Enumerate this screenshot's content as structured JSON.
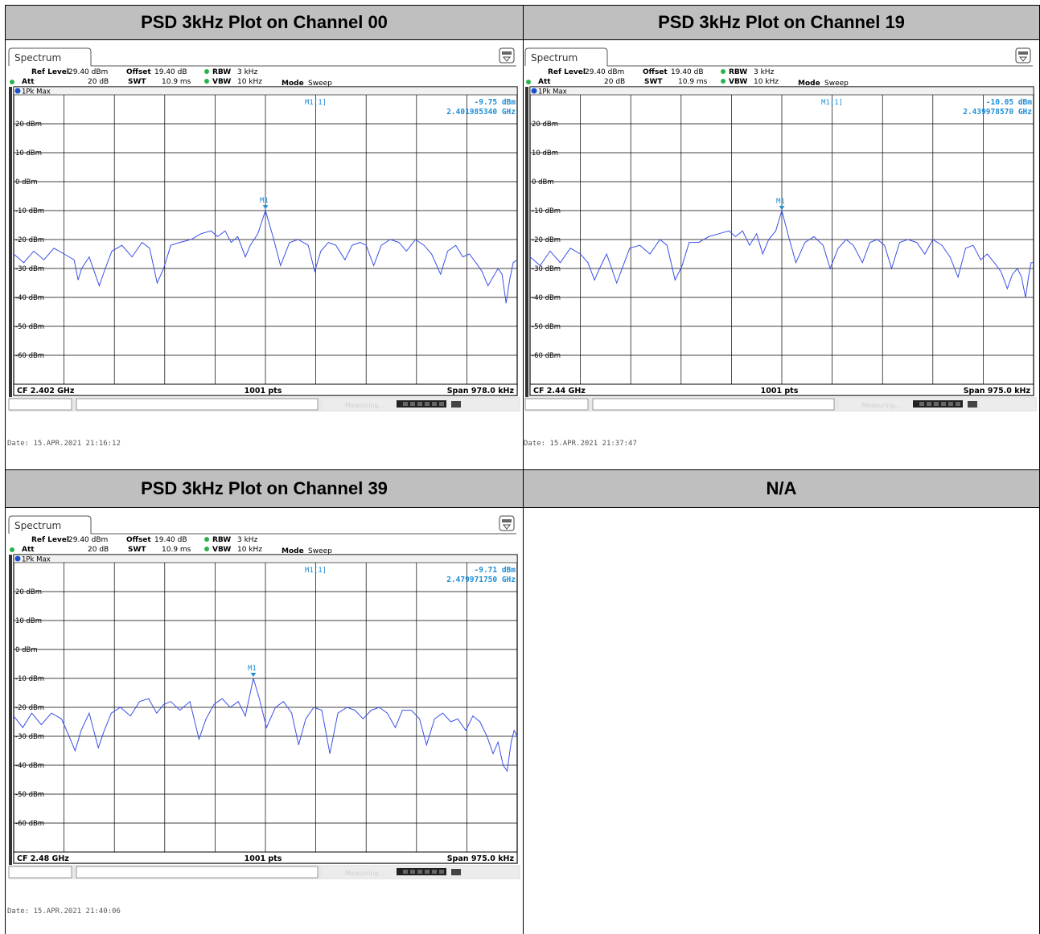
{
  "panels": [
    {
      "heading": "PSD 3kHz Plot on Channel 00",
      "tab": "Spectrum",
      "ref_level_label": "Ref Level",
      "ref_level": "29.40 dBm",
      "offset_label": "Offset",
      "offset": "19.40 dB",
      "rbw_label": "RBW",
      "rbw": "3 kHz",
      "att_label": "Att",
      "att": "20 dB",
      "swt_label": "SWT",
      "swt": "10.9 ms",
      "vbw_label": "VBW",
      "vbw": "10 kHz",
      "mode_label": "Mode",
      "mode": "Sweep",
      "trace_label": "1Pk Max",
      "marker_name": "M1[1]",
      "marker_level": "-9.75 dBm",
      "marker_freq": "2.401985340 GHz",
      "marker_tag": "M1",
      "cf": "CF 2.402 GHz",
      "pts": "1001 pts",
      "span": "Span 978.0 kHz",
      "status": "Measuring...",
      "date": "Date: 15.APR.2021  21:16:12"
    },
    {
      "heading": "PSD 3kHz Plot on Channel 19",
      "tab": "Spectrum",
      "ref_level_label": "Ref Level",
      "ref_level": "29.40 dBm",
      "offset_label": "Offset",
      "offset": "19.40 dB",
      "rbw_label": "RBW",
      "rbw": "3 kHz",
      "att_label": "Att",
      "att": "20 dB",
      "swt_label": "SWT",
      "swt": "10.9 ms",
      "vbw_label": "VBW",
      "vbw": "10 kHz",
      "mode_label": "Mode",
      "mode": "Sweep",
      "trace_label": "1Pk Max",
      "marker_name": "M1[1]",
      "marker_level": "-10.05 dBm",
      "marker_freq": "2.439978570 GHz",
      "marker_tag": "M1",
      "cf": "CF 2.44 GHz",
      "pts": "1001 pts",
      "span": "Span 975.0 kHz",
      "status": "Measuring...",
      "date": "Date: 15.APR.2021  21:37:47"
    },
    {
      "heading": "PSD 3kHz Plot on Channel 39",
      "tab": "Spectrum",
      "ref_level_label": "Ref Level",
      "ref_level": "29.40 dBm",
      "offset_label": "Offset",
      "offset": "19.40 dB",
      "rbw_label": "RBW",
      "rbw": "3 kHz",
      "att_label": "Att",
      "att": "20 dB",
      "swt_label": "SWT",
      "swt": "10.9 ms",
      "vbw_label": "VBW",
      "vbw": "10 kHz",
      "mode_label": "Mode",
      "mode": "Sweep",
      "trace_label": "1Pk Max",
      "marker_name": "M1[1]",
      "marker_level": "-9.71 dBm",
      "marker_freq": "2.479971750 GHz",
      "marker_tag": "M1",
      "cf": "CF 2.48 GHz",
      "pts": "1001 pts",
      "span": "Span 975.0 kHz",
      "status": "Measuring...",
      "date": "Date: 15.APR.2021  21:40:06"
    }
  ],
  "na_heading": "N/A",
  "colors": {
    "trace": "#3c50e6",
    "marker": "#1f8fd6",
    "header_bg": "#bfbfbf",
    "grid": "#000000"
  },
  "chart_data": [
    {
      "type": "line",
      "title": "PSD 3kHz Plot on Channel 00",
      "ylabel": "dBm",
      "ylim": [
        -70,
        30
      ],
      "xlim": [
        0,
        1000
      ],
      "yticks": [
        "20 dBm",
        "10 dBm",
        "0 dBm",
        "-10 dBm",
        "-20 dBm",
        "-30 dBm",
        "-40 dBm",
        "-50 dBm",
        "-60 dBm"
      ],
      "marker": {
        "x": 500,
        "y": -9.75
      },
      "series": [
        {
          "values": [
            [
              0,
              -25
            ],
            [
              20,
              -28
            ],
            [
              40,
              -24
            ],
            [
              60,
              -27
            ],
            [
              80,
              -23
            ],
            [
              100,
              -25
            ],
            [
              120,
              -27
            ],
            [
              128,
              -34
            ],
            [
              135,
              -30
            ],
            [
              150,
              -26
            ],
            [
              170,
              -36
            ],
            [
              182,
              -30
            ],
            [
              195,
              -24
            ],
            [
              215,
              -22
            ],
            [
              235,
              -26
            ],
            [
              255,
              -21
            ],
            [
              270,
              -23
            ],
            [
              285,
              -35
            ],
            [
              298,
              -30
            ],
            [
              312,
              -22
            ],
            [
              330,
              -21
            ],
            [
              352,
              -20
            ],
            [
              372,
              -18
            ],
            [
              392,
              -17
            ],
            [
              405,
              -19
            ],
            [
              420,
              -17
            ],
            [
              432,
              -21
            ],
            [
              445,
              -19
            ],
            [
              460,
              -26
            ],
            [
              470,
              -22
            ],
            [
              485,
              -18
            ],
            [
              500,
              -10
            ],
            [
              515,
              -19
            ],
            [
              530,
              -29
            ],
            [
              548,
              -21
            ],
            [
              565,
              -20
            ],
            [
              585,
              -22
            ],
            [
              598,
              -31
            ],
            [
              610,
              -24
            ],
            [
              625,
              -21
            ],
            [
              640,
              -22
            ],
            [
              658,
              -27
            ],
            [
              672,
              -22
            ],
            [
              688,
              -21
            ],
            [
              700,
              -22
            ],
            [
              715,
              -29
            ],
            [
              730,
              -22
            ],
            [
              748,
              -20
            ],
            [
              765,
              -21
            ],
            [
              780,
              -24
            ],
            [
              798,
              -20
            ],
            [
              815,
              -22
            ],
            [
              830,
              -25
            ],
            [
              848,
              -32
            ],
            [
              862,
              -24
            ],
            [
              878,
              -22
            ],
            [
              892,
              -26
            ],
            [
              905,
              -25
            ],
            [
              918,
              -28
            ],
            [
              930,
              -31
            ],
            [
              942,
              -36
            ],
            [
              952,
              -33
            ],
            [
              962,
              -30
            ],
            [
              970,
              -32
            ],
            [
              978,
              -42
            ],
            [
              985,
              -34
            ],
            [
              992,
              -28
            ],
            [
              1000,
              -27
            ]
          ]
        }
      ]
    },
    {
      "type": "line",
      "title": "PSD 3kHz Plot on Channel 19",
      "ylabel": "dBm",
      "ylim": [
        -70,
        30
      ],
      "xlim": [
        0,
        1000
      ],
      "yticks": [
        "20 dBm",
        "10 dBm",
        "0 dBm",
        "-10 dBm",
        "-20 dBm",
        "-30 dBm",
        "-40 dBm",
        "-50 dBm",
        "-60 dBm"
      ],
      "marker": {
        "x": 500,
        "y": -10.05
      },
      "series": [
        {
          "values": [
            [
              0,
              -26
            ],
            [
              20,
              -29
            ],
            [
              40,
              -24
            ],
            [
              60,
              -28
            ],
            [
              80,
              -23
            ],
            [
              100,
              -25
            ],
            [
              115,
              -28
            ],
            [
              128,
              -34
            ],
            [
              138,
              -30
            ],
            [
              152,
              -25
            ],
            [
              172,
              -35
            ],
            [
              185,
              -29
            ],
            [
              198,
              -23
            ],
            [
              218,
              -22
            ],
            [
              238,
              -25
            ],
            [
              258,
              -20
            ],
            [
              272,
              -22
            ],
            [
              288,
              -34
            ],
            [
              302,
              -29
            ],
            [
              316,
              -21
            ],
            [
              335,
              -21
            ],
            [
              355,
              -19
            ],
            [
              375,
              -18
            ],
            [
              395,
              -17
            ],
            [
              408,
              -19
            ],
            [
              422,
              -17
            ],
            [
              436,
              -22
            ],
            [
              450,
              -18
            ],
            [
              462,
              -25
            ],
            [
              474,
              -20
            ],
            [
              488,
              -17
            ],
            [
              500,
              -10
            ],
            [
              512,
              -18
            ],
            [
              528,
              -28
            ],
            [
              546,
              -21
            ],
            [
              564,
              -19
            ],
            [
              582,
              -22
            ],
            [
              596,
              -30
            ],
            [
              612,
              -23
            ],
            [
              628,
              -20
            ],
            [
              642,
              -22
            ],
            [
              660,
              -28
            ],
            [
              675,
              -21
            ],
            [
              690,
              -20
            ],
            [
              704,
              -22
            ],
            [
              718,
              -30
            ],
            [
              734,
              -21
            ],
            [
              750,
              -20
            ],
            [
              768,
              -21
            ],
            [
              784,
              -25
            ],
            [
              800,
              -20
            ],
            [
              818,
              -22
            ],
            [
              834,
              -26
            ],
            [
              850,
              -33
            ],
            [
              865,
              -23
            ],
            [
              880,
              -22
            ],
            [
              895,
              -27
            ],
            [
              908,
              -25
            ],
            [
              922,
              -28
            ],
            [
              935,
              -31
            ],
            [
              948,
              -37
            ],
            [
              958,
              -32
            ],
            [
              968,
              -30
            ],
            [
              976,
              -33
            ],
            [
              984,
              -40
            ],
            [
              990,
              -33
            ],
            [
              995,
              -28
            ],
            [
              1000,
              -28
            ]
          ]
        }
      ]
    },
    {
      "type": "line",
      "title": "PSD 3kHz Plot on Channel 39",
      "ylabel": "dBm",
      "ylim": [
        -70,
        30
      ],
      "xlim": [
        0,
        1000
      ],
      "yticks": [
        "20 dBm",
        "10 dBm",
        "0 dBm",
        "-10 dBm",
        "-20 dBm",
        "-30 dBm",
        "-40 dBm",
        "-50 dBm",
        "-60 dBm"
      ],
      "marker": {
        "x": 476,
        "y": -9.71
      },
      "series": [
        {
          "values": [
            [
              0,
              -23
            ],
            [
              18,
              -27
            ],
            [
              36,
              -22
            ],
            [
              55,
              -26
            ],
            [
              75,
              -22
            ],
            [
              95,
              -24
            ],
            [
              110,
              -30
            ],
            [
              122,
              -35
            ],
            [
              134,
              -28
            ],
            [
              150,
              -22
            ],
            [
              168,
              -34
            ],
            [
              180,
              -28
            ],
            [
              194,
              -22
            ],
            [
              212,
              -20
            ],
            [
              232,
              -23
            ],
            [
              250,
              -18
            ],
            [
              268,
              -17
            ],
            [
              284,
              -22
            ],
            [
              298,
              -19
            ],
            [
              312,
              -18
            ],
            [
              330,
              -21
            ],
            [
              350,
              -18
            ],
            [
              368,
              -31
            ],
            [
              382,
              -24
            ],
            [
              398,
              -19
            ],
            [
              414,
              -17
            ],
            [
              430,
              -20
            ],
            [
              446,
              -18
            ],
            [
              460,
              -23
            ],
            [
              476,
              -10
            ],
            [
              488,
              -17
            ],
            [
              502,
              -27
            ],
            [
              520,
              -20
            ],
            [
              536,
              -18
            ],
            [
              552,
              -22
            ],
            [
              566,
              -33
            ],
            [
              580,
              -24
            ],
            [
              596,
              -20
            ],
            [
              612,
              -21
            ],
            [
              628,
              -36
            ],
            [
              644,
              -22
            ],
            [
              662,
              -20
            ],
            [
              678,
              -21
            ],
            [
              694,
              -24
            ],
            [
              710,
              -21
            ],
            [
              726,
              -20
            ],
            [
              742,
              -22
            ],
            [
              758,
              -27
            ],
            [
              772,
              -21
            ],
            [
              790,
              -21
            ],
            [
              806,
              -24
            ],
            [
              820,
              -33
            ],
            [
              836,
              -24
            ],
            [
              852,
              -22
            ],
            [
              868,
              -25
            ],
            [
              882,
              -24
            ],
            [
              898,
              -28
            ],
            [
              912,
              -23
            ],
            [
              926,
              -25
            ],
            [
              940,
              -30
            ],
            [
              952,
              -36
            ],
            [
              962,
              -32
            ],
            [
              972,
              -40
            ],
            [
              980,
              -42
            ],
            [
              988,
              -32
            ],
            [
              994,
              -28
            ],
            [
              1000,
              -30
            ]
          ]
        }
      ]
    }
  ]
}
